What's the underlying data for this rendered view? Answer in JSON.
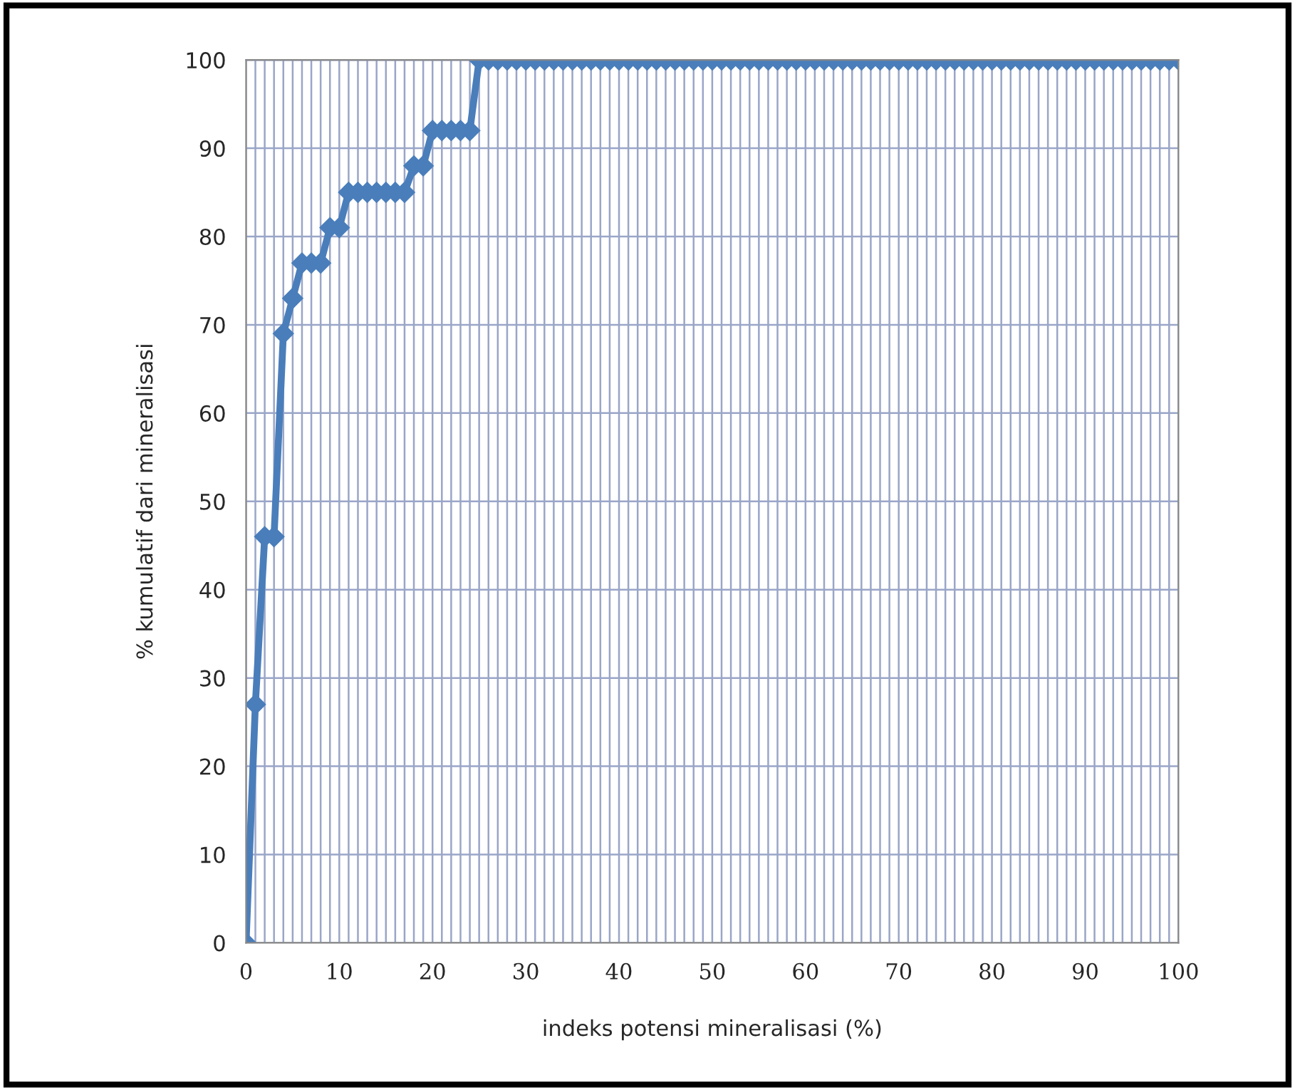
{
  "chart_data": {
    "type": "line",
    "xlabel": "indeks potensi mineralisasi (%)",
    "ylabel": "% kumulatif dari mineralisasi",
    "x": [
      0,
      1,
      2,
      3,
      4,
      5,
      6,
      7,
      8,
      9,
      10,
      11,
      12,
      13,
      14,
      15,
      16,
      17,
      18,
      19,
      20,
      21,
      22,
      23,
      24,
      25,
      26,
      27,
      28,
      29,
      30,
      31,
      32,
      33,
      34,
      35,
      36,
      37,
      38,
      39,
      40,
      41,
      42,
      43,
      44,
      45,
      46,
      47,
      48,
      49,
      50,
      51,
      52,
      53,
      54,
      55,
      56,
      57,
      58,
      59,
      60,
      61,
      62,
      63,
      64,
      65,
      66,
      67,
      68,
      69,
      70,
      71,
      72,
      73,
      74,
      75,
      76,
      77,
      78,
      79,
      80,
      81,
      82,
      83,
      84,
      85,
      86,
      87,
      88,
      89,
      90,
      91,
      92,
      93,
      94,
      95,
      96,
      97,
      98,
      99,
      100
    ],
    "series": [
      {
        "color": "#4a7ebb",
        "values": [
          0,
          27,
          46,
          46,
          69,
          73,
          77,
          77,
          77,
          81,
          81,
          85,
          85,
          85,
          85,
          85,
          85,
          85,
          88,
          88,
          92,
          92,
          92,
          92,
          92,
          100,
          100,
          100,
          100,
          100,
          100,
          100,
          100,
          100,
          100,
          100,
          100,
          100,
          100,
          100,
          100,
          100,
          100,
          100,
          100,
          100,
          100,
          100,
          100,
          100,
          100,
          100,
          100,
          100,
          100,
          100,
          100,
          100,
          100,
          100,
          100,
          100,
          100,
          100,
          100,
          100,
          100,
          100,
          100,
          100,
          100,
          100,
          100,
          100,
          100,
          100,
          100,
          100,
          100,
          100,
          100,
          100,
          100,
          100,
          100,
          100,
          100,
          100,
          100,
          100,
          100,
          100,
          100,
          100,
          100,
          100,
          100,
          100,
          100,
          100,
          100
        ]
      }
    ],
    "xlim": [
      0,
      100
    ],
    "xticks": [
      0,
      {
        "value": 1,
        "label": null
      },
      {
        "value": 2,
        "label": null
      },
      {
        "value": 3,
        "label": null
      },
      {
        "value": 4,
        "label": null
      },
      {
        "value": 5,
        "label": null
      },
      {
        "value": 6,
        "label": null
      },
      {
        "value": 7,
        "label": null
      },
      {
        "value": 8,
        "label": null
      },
      {
        "value": 9,
        "label": null
      },
      10,
      {
        "value": 11,
        "label": null
      },
      {
        "value": 12,
        "label": null
      },
      {
        "value": 13,
        "label": null
      },
      {
        "value": 14,
        "label": null
      },
      {
        "value": 15,
        "label": null
      },
      {
        "value": 16,
        "label": null
      },
      {
        "value": 17,
        "label": null
      },
      {
        "value": 18,
        "label": null
      },
      {
        "value": 19,
        "label": null
      },
      20,
      {
        "value": 21,
        "label": null
      },
      {
        "value": 22,
        "label": null
      },
      {
        "value": 23,
        "label": null
      },
      {
        "value": 24,
        "label": null
      },
      {
        "value": 25,
        "label": null
      },
      {
        "value": 26,
        "label": null
      },
      {
        "value": 27,
        "label": null
      },
      {
        "value": 28,
        "label": null
      },
      {
        "value": 29,
        "label": null
      },
      30,
      {
        "value": 31,
        "label": null
      },
      {
        "value": 32,
        "label": null
      },
      {
        "value": 33,
        "label": null
      },
      {
        "value": 34,
        "label": null
      },
      {
        "value": 35,
        "label": null
      },
      {
        "value": 36,
        "label": null
      },
      {
        "value": 37,
        "label": null
      },
      {
        "value": 38,
        "label": null
      },
      {
        "value": 39,
        "label": null
      },
      40,
      {
        "value": 41,
        "label": null
      },
      {
        "value": 42,
        "label": null
      },
      {
        "value": 43,
        "label": null
      },
      {
        "value": 44,
        "label": null
      },
      {
        "value": 45,
        "label": null
      },
      {
        "value": 46,
        "label": null
      },
      {
        "value": 47,
        "label": null
      },
      {
        "value": 48,
        "label": null
      },
      {
        "value": 49,
        "label": null
      },
      50,
      {
        "value": 51,
        "label": null
      },
      {
        "value": 52,
        "label": null
      },
      {
        "value": 53,
        "label": null
      },
      {
        "value": 54,
        "label": null
      },
      {
        "value": 55,
        "label": null
      },
      {
        "value": 56,
        "label": null
      },
      {
        "value": 57,
        "label": null
      },
      {
        "value": 58,
        "label": null
      },
      {
        "value": 59,
        "label": null
      },
      60,
      {
        "value": 61,
        "label": null
      },
      {
        "value": 62,
        "label": null
      },
      {
        "value": 63,
        "label": null
      },
      {
        "value": 64,
        "label": null
      },
      {
        "value": 65,
        "label": null
      },
      {
        "value": 66,
        "label": null
      },
      {
        "value": 67,
        "label": null
      },
      {
        "value": 68,
        "label": null
      },
      {
        "value": 69,
        "label": null
      },
      70,
      {
        "value": 71,
        "label": null
      },
      {
        "value": 72,
        "label": null
      },
      {
        "value": 73,
        "label": null
      },
      {
        "value": 74,
        "label": null
      },
      {
        "value": 75,
        "label": null
      },
      {
        "value": 76,
        "label": null
      },
      {
        "value": 77,
        "label": null
      },
      {
        "value": 78,
        "label": null
      },
      {
        "value": 79,
        "label": null
      },
      80,
      {
        "value": 81,
        "label": null
      },
      {
        "value": 82,
        "label": null
      },
      {
        "value": 83,
        "label": null
      },
      {
        "value": 84,
        "label": null
      },
      {
        "value": 85,
        "label": null
      },
      {
        "value": 86,
        "label": null
      },
      {
        "value": 87,
        "label": null
      },
      {
        "value": 88,
        "label": null
      },
      {
        "value": 89,
        "label": null
      },
      90,
      {
        "value": 91,
        "label": null
      },
      {
        "value": 92,
        "label": null
      },
      {
        "value": 93,
        "label": null
      },
      {
        "value": 94,
        "label": null
      },
      {
        "value": 95,
        "label": null
      },
      {
        "value": 96,
        "label": null
      },
      {
        "value": 97,
        "label": null
      },
      {
        "value": 98,
        "label": null
      },
      {
        "value": 99,
        "label": null
      },
      100
    ],
    "ylim": [
      0,
      100
    ],
    "yticks": [
      0,
      10,
      20,
      30,
      40,
      50,
      60,
      70,
      80,
      90,
      100
    ],
    "grid": true,
    "marker": "diamond",
    "line_style": "solid",
    "legend": false
  }
}
